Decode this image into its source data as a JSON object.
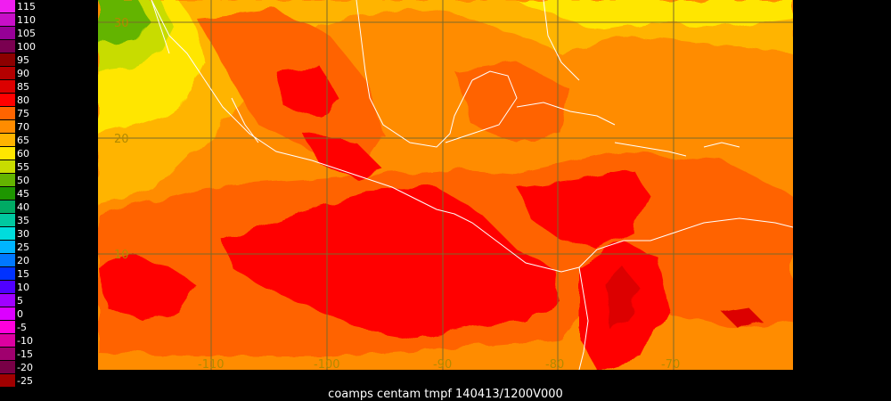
{
  "legend": {
    "unit": "tmpf",
    "items": [
      {
        "label": "115",
        "color": "#f01ef0"
      },
      {
        "label": "110",
        "color": "#c80fc8"
      },
      {
        "label": "105",
        "color": "#960096"
      },
      {
        "label": "100",
        "color": "#7a0050"
      },
      {
        "label": "95",
        "color": "#8c0000"
      },
      {
        "label": "90",
        "color": "#b40000"
      },
      {
        "label": "85",
        "color": "#dc0000"
      },
      {
        "label": "80",
        "color": "#ff0000"
      },
      {
        "label": "75",
        "color": "#ff6400"
      },
      {
        "label": "70",
        "color": "#ff8c00"
      },
      {
        "label": "65",
        "color": "#ffb400"
      },
      {
        "label": "60",
        "color": "#ffe600"
      },
      {
        "label": "55",
        "color": "#c8dc00"
      },
      {
        "label": "50",
        "color": "#64b400"
      },
      {
        "label": "45",
        "color": "#1e9600"
      },
      {
        "label": "40",
        "color": "#00aa64"
      },
      {
        "label": "35",
        "color": "#00c8a0"
      },
      {
        "label": "30",
        "color": "#00dcdc"
      },
      {
        "label": "25",
        "color": "#00b4ff"
      },
      {
        "label": "20",
        "color": "#0078ff"
      },
      {
        "label": "15",
        "color": "#0032ff"
      },
      {
        "label": "10",
        "color": "#5000ff"
      },
      {
        "label": "5",
        "color": "#a000ff"
      },
      {
        "label": "0",
        "color": "#dc00ff"
      },
      {
        "label": "-5",
        "color": "#ff00dc"
      },
      {
        "label": "-10",
        "color": "#dc00a0"
      },
      {
        "label": "-15",
        "color": "#a0006e"
      },
      {
        "label": "-20",
        "color": "#780046"
      },
      {
        "label": "-25",
        "color": "#a00000"
      }
    ]
  },
  "map": {
    "lat_labels": [
      "30",
      "20",
      "10"
    ],
    "lon_labels": [
      "-110",
      "-100",
      "-90",
      "-80",
      "-70"
    ]
  },
  "caption": "coamps centam tmpf 140413/1200V000"
}
